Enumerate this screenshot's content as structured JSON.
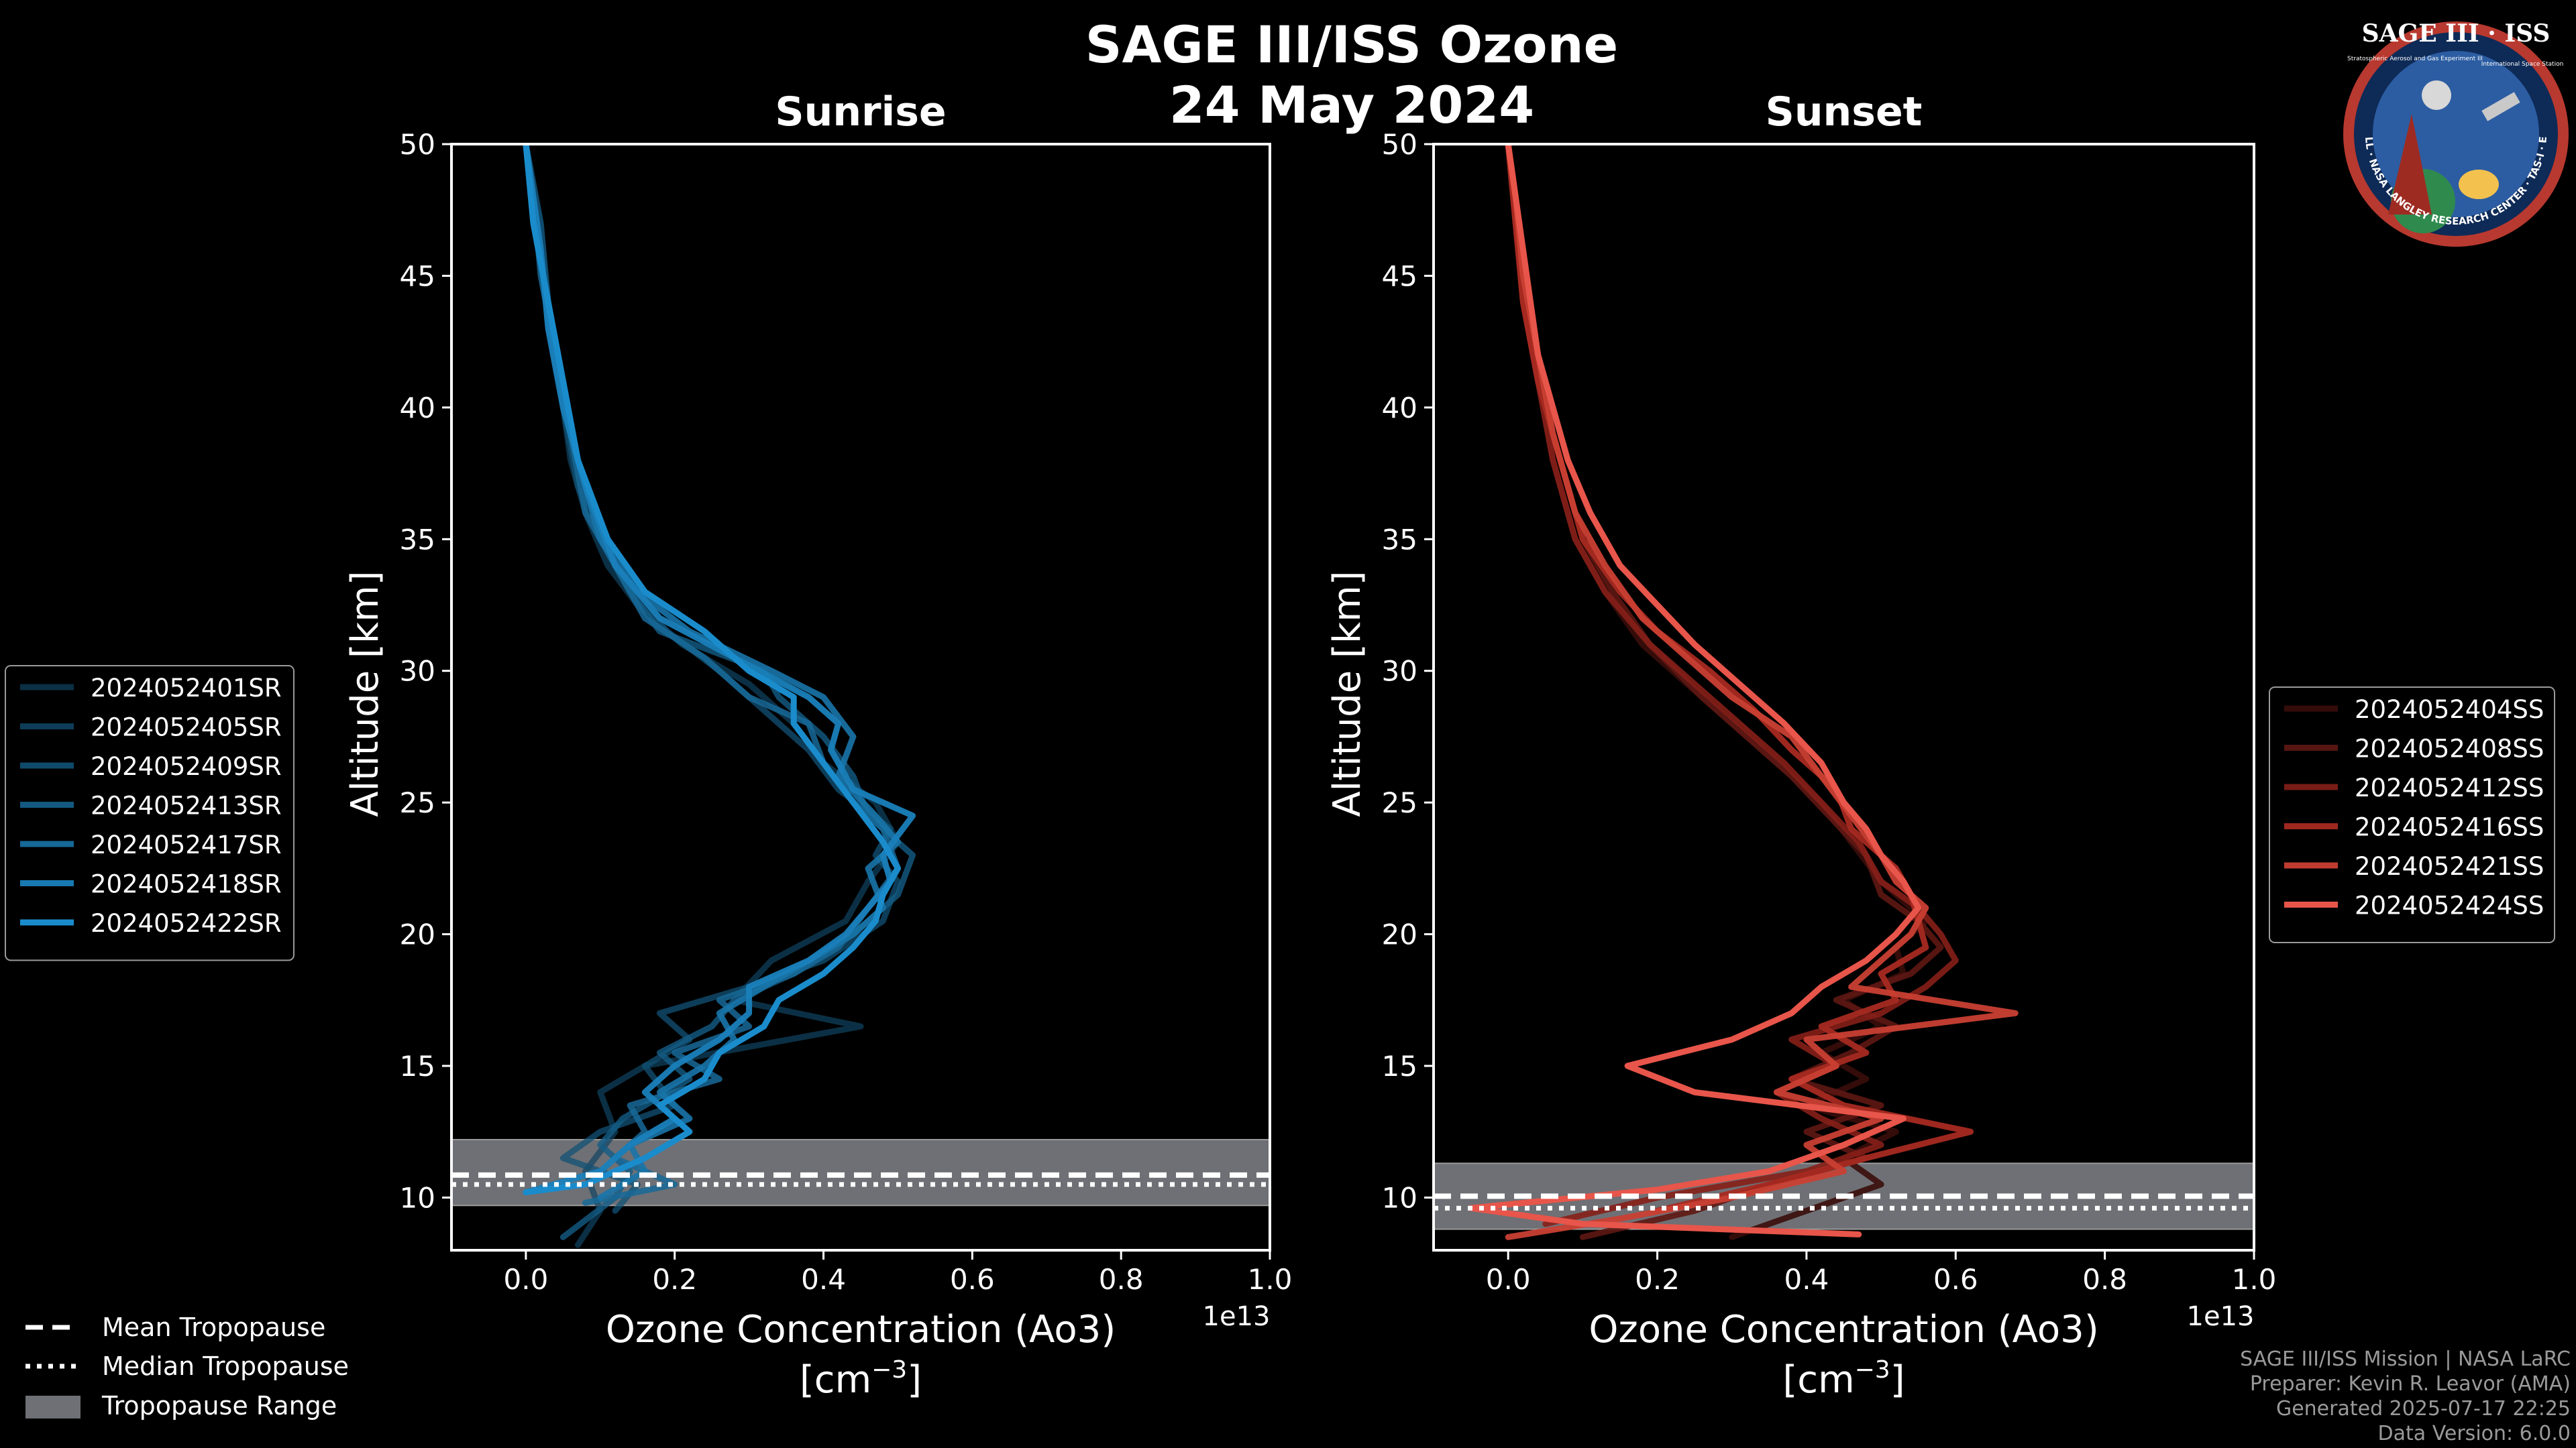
{
  "figure": {
    "title_line1": "SAGE III/ISS Ozone",
    "title_line2": "24 May 2024",
    "footer": [
      "SAGE III/ISS Mission | NASA LaRC",
      "Preparer: Kevin R. Leavor (AMA)",
      "Generated 2025-07-17 22:25",
      "Data Version: 6.0.0"
    ],
    "bottom_legend": [
      "Mean Tropopause",
      "Median Tropopause",
      "Tropopause Range"
    ],
    "logo_text": {
      "top": "SAGE III · ISS",
      "ring": "BALL · NASA LANGLEY RESEARCH CENTER · TAS-I · ESA",
      "side1": "Stratospheric Aerosol and Gas Experiment III",
      "side2": "International Space Station"
    },
    "colors": {
      "sunrise": "#1a8ccc",
      "sunset": "#e8554a",
      "tropopause_range": "#6e7075",
      "background": "#000000"
    }
  },
  "chart_data": [
    {
      "type": "line",
      "title": "Sunrise",
      "xlabel": "Ozone Concentration (Ao3)",
      "xlabel_units": "[cm",
      "xlabel_units_sup": "−3",
      "xlabel_units_end": "]",
      "ylabel": "Altitude [km]",
      "x_scale_label": "1e13",
      "xlim": [
        -0.1,
        1.0
      ],
      "ylim": [
        8,
        50
      ],
      "xticks": [
        "0.0",
        "0.2",
        "0.4",
        "0.6",
        "0.8",
        "1.0"
      ],
      "xtick_values": [
        0.0,
        0.2,
        0.4,
        0.6,
        0.8,
        1.0
      ],
      "yticks": [
        "10",
        "15",
        "20",
        "25",
        "30",
        "35",
        "40",
        "45",
        "50"
      ],
      "ytick_values": [
        10,
        15,
        20,
        25,
        30,
        35,
        40,
        45,
        50
      ],
      "tropopause": {
        "mean": 10.7,
        "median": 10.7,
        "range": [
          9.7,
          12.2
        ]
      },
      "legend_position": "left",
      "series": [
        {
          "name": "2024052401SR",
          "color": "#0f4563",
          "opacity": 0.7,
          "alt": [
            8.2,
            9.5,
            11,
            12.5,
            14,
            15,
            16.5,
            17.5,
            19,
            20.5,
            22,
            23.5,
            25,
            26.5,
            28,
            29.5,
            31,
            32.5,
            34,
            36,
            38,
            40,
            42,
            44,
            46,
            48,
            50
          ],
          "x": [
            0.07,
            0.1,
            0.08,
            0.12,
            0.1,
            0.16,
            0.45,
            0.28,
            0.33,
            0.43,
            0.46,
            0.5,
            0.47,
            0.4,
            0.36,
            0.3,
            0.21,
            0.15,
            0.11,
            0.08,
            0.06,
            0.05,
            0.04,
            0.03,
            0.02,
            0.01,
            0.0
          ]
        },
        {
          "name": "2024052405SR",
          "color": "#125175",
          "opacity": 0.75,
          "alt": [
            9.5,
            10.5,
            11.5,
            12.5,
            13.5,
            15,
            16,
            17,
            18,
            19,
            20.5,
            22,
            23,
            24,
            25.5,
            27,
            28.5,
            30,
            31.5,
            33,
            35,
            37,
            40,
            43,
            46,
            48,
            50
          ],
          "x": [
            0.12,
            0.15,
            0.05,
            0.1,
            0.2,
            0.16,
            0.22,
            0.18,
            0.3,
            0.4,
            0.48,
            0.5,
            0.47,
            0.49,
            0.42,
            0.38,
            0.32,
            0.26,
            0.19,
            0.14,
            0.1,
            0.07,
            0.05,
            0.03,
            0.02,
            0.01,
            0.0
          ]
        },
        {
          "name": "2024052409SR",
          "color": "#145c86",
          "opacity": 0.8,
          "alt": [
            8.5,
            10,
            11,
            12,
            13,
            14.5,
            15.5,
            16.5,
            17.5,
            18.5,
            20,
            21.5,
            23,
            24.5,
            26,
            27.5,
            29,
            30,
            31.5,
            33,
            35,
            38,
            41,
            44,
            47,
            50
          ],
          "x": [
            0.05,
            0.12,
            0.14,
            0.1,
            0.13,
            0.22,
            0.18,
            0.25,
            0.28,
            0.36,
            0.44,
            0.5,
            0.52,
            0.46,
            0.44,
            0.4,
            0.34,
            0.32,
            0.18,
            0.14,
            0.1,
            0.07,
            0.05,
            0.03,
            0.02,
            0.0
          ]
        },
        {
          "name": "2024052413SR",
          "color": "#176898",
          "opacity": 0.85,
          "alt": [
            9.8,
            10.5,
            11.5,
            12.5,
            13.5,
            14.5,
            15.5,
            16.5,
            17.5,
            18.5,
            19.5,
            21,
            22.5,
            24,
            25,
            26.5,
            28,
            29,
            30.5,
            32,
            34,
            36,
            39,
            42,
            45,
            48,
            50
          ],
          "x": [
            0.08,
            0.2,
            0.12,
            0.16,
            0.14,
            0.26,
            0.2,
            0.3,
            0.26,
            0.36,
            0.42,
            0.46,
            0.5,
            0.48,
            0.44,
            0.4,
            0.38,
            0.3,
            0.24,
            0.16,
            0.12,
            0.08,
            0.06,
            0.04,
            0.02,
            0.01,
            0.0
          ]
        },
        {
          "name": "2024052417SR",
          "color": "#1874a9",
          "opacity": 0.9,
          "alt": [
            10,
            11,
            12,
            13,
            14,
            15,
            16,
            17,
            18,
            19,
            20,
            21,
            22.5,
            23.5,
            24.5,
            26,
            27.5,
            29,
            30,
            31.5,
            33,
            35,
            38,
            41,
            44,
            47,
            50
          ],
          "x": [
            0.1,
            0.16,
            0.14,
            0.22,
            0.18,
            0.24,
            0.28,
            0.26,
            0.32,
            0.38,
            0.44,
            0.48,
            0.46,
            0.5,
            0.47,
            0.42,
            0.44,
            0.4,
            0.33,
            0.22,
            0.15,
            0.1,
            0.07,
            0.05,
            0.03,
            0.01,
            0.0
          ]
        },
        {
          "name": "2024052418SR",
          "color": "#1a80bb",
          "opacity": 0.95,
          "alt": [
            10.2,
            11,
            12,
            13,
            14,
            15,
            16,
            17,
            18,
            19,
            20,
            21,
            22,
            23,
            24.5,
            25.5,
            27,
            28,
            29,
            30.5,
            32,
            34,
            37,
            40,
            43,
            46,
            50
          ],
          "x": [
            0.0,
            0.1,
            0.14,
            0.2,
            0.16,
            0.2,
            0.26,
            0.3,
            0.3,
            0.38,
            0.43,
            0.46,
            0.49,
            0.48,
            0.52,
            0.44,
            0.41,
            0.42,
            0.38,
            0.28,
            0.18,
            0.12,
            0.08,
            0.05,
            0.03,
            0.02,
            0.0
          ]
        },
        {
          "name": "2024052422SR",
          "color": "#1a8ccc",
          "opacity": 1,
          "alt": [
            10.2,
            10.5,
            11.5,
            12.5,
            13.5,
            14.5,
            15.5,
            16.5,
            17.5,
            18.5,
            19.5,
            20.5,
            21.5,
            22.5,
            23.5,
            25,
            26.5,
            28,
            29,
            30,
            31.5,
            33,
            35,
            38,
            41,
            44,
            47,
            50
          ],
          "x": [
            0.0,
            0.08,
            0.16,
            0.22,
            0.18,
            0.24,
            0.26,
            0.32,
            0.34,
            0.4,
            0.44,
            0.47,
            0.48,
            0.5,
            0.48,
            0.44,
            0.4,
            0.36,
            0.36,
            0.3,
            0.24,
            0.16,
            0.11,
            0.07,
            0.05,
            0.03,
            0.01,
            0.0
          ]
        }
      ]
    },
    {
      "type": "line",
      "title": "Sunset",
      "xlabel": "Ozone Concentration (Ao3)",
      "xlabel_units": "[cm",
      "xlabel_units_sup": "−3",
      "xlabel_units_end": "]",
      "ylabel": "Altitude [km]",
      "x_scale_label": "1e13",
      "xlim": [
        -0.1,
        1.0
      ],
      "ylim": [
        8,
        50
      ],
      "xticks": [
        "0.0",
        "0.2",
        "0.4",
        "0.6",
        "0.8",
        "1.0"
      ],
      "xtick_values": [
        0.0,
        0.2,
        0.4,
        0.6,
        0.8,
        1.0
      ],
      "yticks": [
        "10",
        "15",
        "20",
        "25",
        "30",
        "35",
        "40",
        "45",
        "50"
      ],
      "ytick_values": [
        10,
        15,
        20,
        25,
        30,
        35,
        40,
        45,
        50
      ],
      "tropopause": {
        "mean": 9.9,
        "median": 9.8,
        "range": [
          8.8,
          11.3
        ]
      },
      "legend_position": "right",
      "series": [
        {
          "name": "2024052404SS",
          "color": "#3a0d0b",
          "opacity": 0.9,
          "alt": [
            8.5,
            9.5,
            10.5,
            11.5,
            12.5,
            13.5,
            14.5,
            15.5,
            16.5,
            17.5,
            18.5,
            19.5,
            20.5,
            22,
            23.5,
            25,
            26.5,
            28,
            29.5,
            31,
            33,
            35,
            38,
            41,
            44,
            47,
            50
          ],
          "x": [
            0.3,
            0.4,
            0.5,
            0.45,
            0.52,
            0.4,
            0.48,
            0.42,
            0.5,
            0.45,
            0.53,
            0.52,
            0.56,
            0.5,
            0.46,
            0.42,
            0.36,
            0.3,
            0.24,
            0.18,
            0.13,
            0.09,
            0.06,
            0.04,
            0.02,
            0.01,
            0.0
          ]
        },
        {
          "name": "2024052408SS",
          "color": "#5e1713",
          "opacity": 0.9,
          "alt": [
            8.5,
            9.5,
            10.5,
            11.5,
            12.5,
            13.5,
            14.5,
            15.5,
            16.5,
            17.5,
            18.5,
            19.5,
            20.5,
            21.5,
            23,
            24.5,
            26,
            27.5,
            29,
            31,
            33,
            35,
            38,
            41,
            44,
            47,
            50
          ],
          "x": [
            0.1,
            0.25,
            0.35,
            0.48,
            0.4,
            0.5,
            0.38,
            0.46,
            0.52,
            0.44,
            0.54,
            0.58,
            0.55,
            0.5,
            0.48,
            0.43,
            0.38,
            0.32,
            0.26,
            0.19,
            0.14,
            0.1,
            0.07,
            0.04,
            0.02,
            0.01,
            0.0
          ]
        },
        {
          "name": "2024052412SS",
          "color": "#861f18",
          "opacity": 0.9,
          "alt": [
            9.0,
            10,
            11,
            12,
            13,
            14,
            15,
            16,
            17,
            18,
            19,
            20,
            21,
            22,
            23.5,
            25,
            26.5,
            28,
            29.5,
            31,
            33,
            35,
            38,
            41,
            44,
            47,
            50
          ],
          "x": [
            0.05,
            0.2,
            0.4,
            0.5,
            0.42,
            0.36,
            0.44,
            0.38,
            0.5,
            0.56,
            0.6,
            0.58,
            0.55,
            0.5,
            0.47,
            0.42,
            0.37,
            0.31,
            0.25,
            0.19,
            0.13,
            0.09,
            0.06,
            0.04,
            0.02,
            0.01,
            0.0
          ]
        },
        {
          "name": "2024052416SS",
          "color": "#a72a21",
          "opacity": 0.95,
          "alt": [
            9.5,
            10.5,
            11.5,
            12.5,
            13.5,
            14.5,
            15.5,
            16.5,
            17.5,
            18.5,
            19.5,
            20.5,
            21.5,
            22.5,
            24,
            25.5,
            27,
            28.5,
            30,
            31.5,
            33,
            35,
            38,
            41,
            44,
            47,
            50
          ],
          "x": [
            0.2,
            0.35,
            0.48,
            0.62,
            0.45,
            0.38,
            0.48,
            0.42,
            0.52,
            0.5,
            0.56,
            0.55,
            0.54,
            0.52,
            0.46,
            0.44,
            0.38,
            0.33,
            0.27,
            0.2,
            0.15,
            0.1,
            0.07,
            0.04,
            0.02,
            0.01,
            0.0
          ]
        },
        {
          "name": "2024052421SS",
          "color": "#c93f33",
          "opacity": 0.95,
          "alt": [
            8.5,
            9.2,
            10,
            11,
            12,
            13,
            14,
            15,
            16,
            17,
            18,
            19,
            20,
            21,
            22,
            23,
            24.5,
            26,
            27.5,
            29,
            30.5,
            32,
            34,
            36,
            39,
            42,
            45,
            48,
            50
          ],
          "x": [
            0.0,
            0.15,
            0.3,
            0.45,
            0.4,
            0.5,
            0.36,
            0.44,
            0.4,
            0.68,
            0.46,
            0.5,
            0.54,
            0.56,
            0.52,
            0.5,
            0.46,
            0.42,
            0.38,
            0.3,
            0.24,
            0.18,
            0.13,
            0.09,
            0.06,
            0.04,
            0.02,
            0.01,
            0.0
          ]
        },
        {
          "name": "2024052424SS",
          "color": "#e8554a",
          "opacity": 1,
          "alt": [
            8.6,
            9.0,
            9.6,
            10.3,
            11,
            12,
            13,
            14,
            15,
            16,
            17,
            18,
            19,
            20,
            21,
            22,
            23,
            24,
            25,
            26.5,
            28,
            29.5,
            31,
            32.5,
            34,
            36,
            38,
            40,
            42,
            44,
            46,
            48,
            50
          ],
          "x": [
            0.47,
            0.1,
            -0.05,
            0.2,
            0.35,
            0.45,
            0.53,
            0.25,
            0.16,
            0.3,
            0.38,
            0.42,
            0.48,
            0.52,
            0.55,
            0.53,
            0.5,
            0.48,
            0.45,
            0.42,
            0.37,
            0.31,
            0.25,
            0.2,
            0.15,
            0.11,
            0.08,
            0.06,
            0.04,
            0.03,
            0.02,
            0.01,
            0.0
          ]
        }
      ]
    }
  ]
}
